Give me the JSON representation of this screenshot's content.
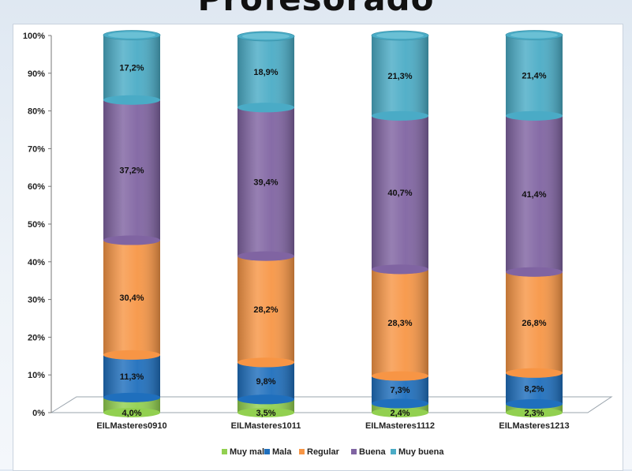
{
  "chart_data": {
    "type": "bar",
    "stacked": true,
    "title": "Profesorado",
    "categories": [
      "EILMasteres0910",
      "EILMasteres1011",
      "EILMasteres1112",
      "EILMasteres1213"
    ],
    "series": [
      {
        "name": "Muy mala",
        "color": "#92d050",
        "values": [
          4.0,
          3.5,
          2.4,
          2.3
        ],
        "labels": [
          "4,0%",
          "3,5%",
          "2,4%",
          "2,3%"
        ]
      },
      {
        "name": "Mala",
        "color": "#1f6fbd",
        "values": [
          11.3,
          9.8,
          7.3,
          8.2
        ],
        "labels": [
          "11,3%",
          "9,8%",
          "7,3%",
          "8,2%"
        ]
      },
      {
        "name": "Regular",
        "color": "#f79646",
        "values": [
          30.4,
          28.2,
          28.3,
          26.8
        ],
        "labels": [
          "30,4%",
          "28,2%",
          "28,3%",
          "26,8%"
        ]
      },
      {
        "name": "Buena",
        "color": "#8064a2",
        "values": [
          37.2,
          39.4,
          40.7,
          41.4
        ],
        "labels": [
          "37,2%",
          "39,4%",
          "40,7%",
          "41,4%"
        ]
      },
      {
        "name": "Muy buena",
        "color": "#4bacc6",
        "values": [
          17.2,
          18.9,
          21.3,
          21.4
        ],
        "labels": [
          "17,2%",
          "18,9%",
          "21,3%",
          "21,4%"
        ]
      }
    ],
    "yticks": [
      "0%",
      "10%",
      "20%",
      "30%",
      "40%",
      "50%",
      "60%",
      "70%",
      "80%",
      "90%",
      "100%"
    ],
    "ylim": [
      0,
      100
    ],
    "legend_position": "bottom",
    "grid": false
  }
}
